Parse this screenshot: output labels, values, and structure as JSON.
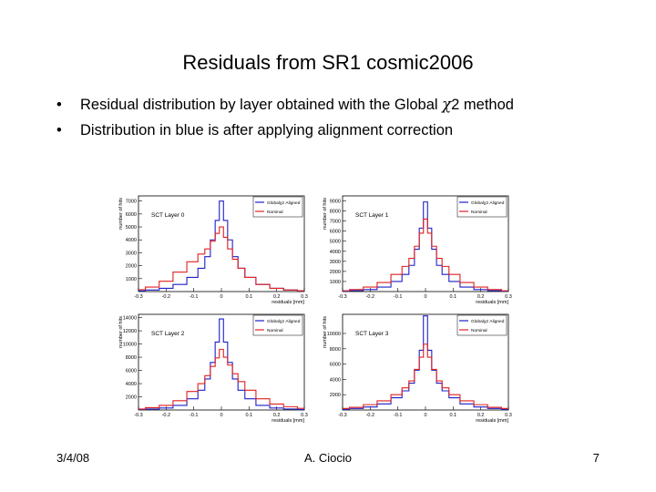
{
  "slide": {
    "title": "Residuals from SR1 cosmic2006",
    "bullet_1_pre": "Residual distribution by layer obtained with the Global ",
    "bullet_1_chi": "χ",
    "bullet_1_post": "2 method",
    "bullet_2": "Distribution in blue is after applying alignment correction",
    "footer_date": "3/4/08",
    "footer_author": "A. Ciocio",
    "footer_page": "7"
  },
  "colors": {
    "aligned": "#1f1fc8",
    "nominal": "#e02020"
  },
  "chart_data": [
    {
      "type": "line",
      "title": "SCT Layer 0",
      "xlabel": "residuals [mm]",
      "ylabel": "number of hits",
      "xlim": [
        -0.3,
        0.3
      ],
      "ylim": [
        0,
        7400
      ],
      "xticks": [
        -0.3,
        -0.2,
        -0.1,
        0,
        0.1,
        0.2,
        0.3
      ],
      "yticks": [
        1000,
        2000,
        3000,
        4000,
        5000,
        6000,
        7000
      ],
      "legend_position": "top-right",
      "series": [
        {
          "name": "Globalχ2 Aligned",
          "color_key": "aligned",
          "x": [
            -0.3,
            -0.25,
            -0.2,
            -0.15,
            -0.1,
            -0.07,
            -0.05,
            -0.03,
            -0.015,
            0,
            0.015,
            0.03,
            0.05,
            0.07,
            0.1,
            0.15,
            0.2,
            0.25,
            0.3
          ],
          "y": [
            60,
            120,
            250,
            550,
            1100,
            1800,
            2700,
            4000,
            5500,
            7000,
            5500,
            4000,
            2700,
            1800,
            1100,
            550,
            250,
            120,
            60
          ]
        },
        {
          "name": "Nominal",
          "color_key": "nominal",
          "x": [
            -0.3,
            -0.25,
            -0.2,
            -0.15,
            -0.1,
            -0.07,
            -0.05,
            -0.03,
            -0.015,
            0,
            0.015,
            0.03,
            0.05,
            0.07,
            0.1,
            0.15,
            0.2,
            0.25,
            0.3
          ],
          "y": [
            150,
            350,
            800,
            1500,
            2300,
            2900,
            3300,
            3900,
            4500,
            5000,
            4200,
            3300,
            2500,
            1800,
            1100,
            550,
            250,
            120,
            60
          ]
        }
      ]
    },
    {
      "type": "line",
      "title": "SCT Layer 1",
      "xlabel": "residuals [mm]",
      "ylabel": "number of hits",
      "xlim": [
        -0.3,
        0.3
      ],
      "ylim": [
        0,
        9500
      ],
      "xticks": [
        -0.3,
        -0.2,
        -0.1,
        0,
        0.1,
        0.2,
        0.3
      ],
      "yticks": [
        1000,
        2000,
        3000,
        4000,
        5000,
        6000,
        7000,
        8000,
        9000
      ],
      "legend_position": "top-right",
      "series": [
        {
          "name": "Globalχ2 Aligned",
          "color_key": "aligned",
          "x": [
            -0.3,
            -0.25,
            -0.2,
            -0.15,
            -0.1,
            -0.07,
            -0.05,
            -0.03,
            -0.015,
            0,
            0.015,
            0.03,
            0.05,
            0.07,
            0.1,
            0.15,
            0.2,
            0.25,
            0.3
          ],
          "y": [
            50,
            100,
            200,
            450,
            1000,
            1700,
            2600,
            4200,
            6300,
            8900,
            6300,
            4200,
            2600,
            1700,
            1000,
            450,
            200,
            100,
            50
          ]
        },
        {
          "name": "Nominal",
          "color_key": "nominal",
          "x": [
            -0.3,
            -0.25,
            -0.2,
            -0.15,
            -0.1,
            -0.07,
            -0.05,
            -0.03,
            -0.015,
            0,
            0.015,
            0.03,
            0.05,
            0.07,
            0.1,
            0.15,
            0.2,
            0.25,
            0.3
          ],
          "y": [
            80,
            200,
            450,
            900,
            1700,
            2500,
            3300,
            4500,
            5800,
            7200,
            5800,
            4500,
            3300,
            2500,
            1700,
            900,
            450,
            200,
            80
          ]
        }
      ]
    },
    {
      "type": "line",
      "title": "SCT Layer 2",
      "xlabel": "residuals [mm]",
      "ylabel": "number of hits",
      "xlim": [
        -0.3,
        0.3
      ],
      "ylim": [
        0,
        14500
      ],
      "xticks": [
        -0.3,
        -0.2,
        -0.1,
        0,
        0.1,
        0.2,
        0.3
      ],
      "yticks": [
        2000,
        4000,
        6000,
        8000,
        10000,
        12000,
        14000
      ],
      "legend_position": "top-right",
      "series": [
        {
          "name": "Globalχ2 Aligned",
          "color_key": "aligned",
          "x": [
            -0.3,
            -0.25,
            -0.2,
            -0.15,
            -0.1,
            -0.07,
            -0.05,
            -0.03,
            -0.015,
            0,
            0.015,
            0.03,
            0.05,
            0.07,
            0.1,
            0.15,
            0.2,
            0.25,
            0.3
          ],
          "y": [
            80,
            150,
            300,
            700,
            1700,
            3000,
            4700,
            7200,
            10300,
            13800,
            10300,
            7200,
            4700,
            3000,
            1700,
            700,
            300,
            150,
            80
          ]
        },
        {
          "name": "Nominal",
          "color_key": "nominal",
          "x": [
            -0.3,
            -0.25,
            -0.2,
            -0.15,
            -0.1,
            -0.07,
            -0.05,
            -0.03,
            -0.015,
            0,
            0.015,
            0.03,
            0.05,
            0.07,
            0.1,
            0.15,
            0.2,
            0.25,
            0.3
          ],
          "y": [
            150,
            350,
            700,
            1400,
            2800,
            4000,
            5200,
            6600,
            7900,
            9200,
            8000,
            6800,
            5500,
            4300,
            3000,
            1700,
            900,
            500,
            250
          ]
        }
      ]
    },
    {
      "type": "line",
      "title": "SCT Layer 3",
      "xlabel": "residuals [mm]",
      "ylabel": "number of hits",
      "xlim": [
        -0.3,
        0.3
      ],
      "ylim": [
        0,
        12500
      ],
      "xticks": [
        -0.3,
        -0.2,
        -0.1,
        0,
        0.1,
        0.2,
        0.3
      ],
      "yticks": [
        2000,
        4000,
        6000,
        8000,
        10000
      ],
      "legend_position": "top-right",
      "series": [
        {
          "name": "Globalχ2 Aligned",
          "color_key": "aligned",
          "x": [
            -0.3,
            -0.25,
            -0.2,
            -0.15,
            -0.1,
            -0.07,
            -0.05,
            -0.03,
            -0.015,
            0,
            0.015,
            0.03,
            0.05,
            0.07,
            0.1,
            0.15,
            0.2,
            0.25,
            0.3
          ],
          "y": [
            100,
            200,
            400,
            800,
            1600,
            2500,
            3500,
            5200,
            7800,
            12300,
            7800,
            5200,
            3500,
            2500,
            1600,
            800,
            400,
            200,
            100
          ]
        },
        {
          "name": "Nominal",
          "color_key": "nominal",
          "x": [
            -0.3,
            -0.25,
            -0.2,
            -0.15,
            -0.1,
            -0.07,
            -0.05,
            -0.03,
            -0.015,
            0,
            0.015,
            0.03,
            0.05,
            0.07,
            0.1,
            0.15,
            0.2,
            0.25,
            0.3
          ],
          "y": [
            200,
            350,
            700,
            1200,
            2000,
            2900,
            3800,
            5300,
            6900,
            8600,
            6900,
            5300,
            3800,
            2900,
            2000,
            1200,
            700,
            350,
            200
          ]
        }
      ]
    }
  ]
}
